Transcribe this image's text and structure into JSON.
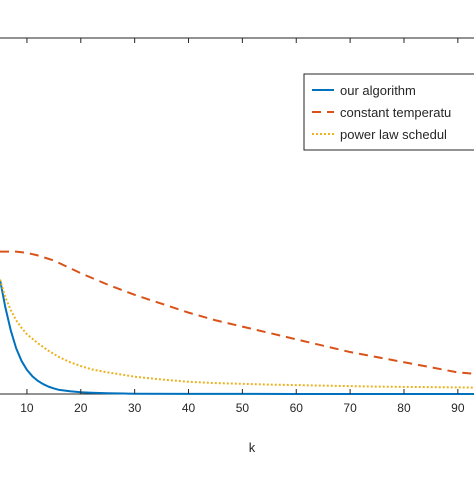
{
  "chart_data": {
    "type": "line",
    "xlabel": "k",
    "ylabel": "",
    "title": "",
    "xlim": [
      5,
      93
    ],
    "ylim": [
      0,
      1.4
    ],
    "x_ticks": [
      10,
      20,
      30,
      40,
      50,
      60,
      70,
      80,
      90
    ],
    "x_tick_labels": [
      "10",
      "20",
      "30",
      "40",
      "50",
      "60",
      "70",
      "80",
      "90"
    ],
    "grid": false,
    "legend_position": "top-right",
    "series": [
      {
        "name": "our algorithm",
        "color": "#0072bd",
        "line_style": "solid",
        "points": [
          [
            5,
            0.45
          ],
          [
            6,
            0.34
          ],
          [
            7,
            0.25
          ],
          [
            8,
            0.18
          ],
          [
            9,
            0.13
          ],
          [
            10,
            0.095
          ],
          [
            11,
            0.07
          ],
          [
            12,
            0.052
          ],
          [
            13,
            0.039
          ],
          [
            14,
            0.029
          ],
          [
            15,
            0.022
          ],
          [
            16,
            0.016
          ],
          [
            18,
            0.011
          ],
          [
            20,
            0.007
          ],
          [
            22,
            0.005
          ],
          [
            25,
            0.003
          ],
          [
            28,
            0.002
          ],
          [
            30,
            0.001
          ],
          [
            40,
            0.0005
          ],
          [
            50,
            0.0003
          ],
          [
            60,
            0.0002
          ],
          [
            70,
            0.0001
          ],
          [
            80,
            0.0001
          ],
          [
            93,
            0.0001
          ]
        ]
      },
      {
        "name": "constant temperatu",
        "color": "#d95319",
        "line_style": "dashed",
        "points": [
          [
            5,
            0.56
          ],
          [
            8,
            0.56
          ],
          [
            10,
            0.555
          ],
          [
            12,
            0.545
          ],
          [
            15,
            0.525
          ],
          [
            18,
            0.495
          ],
          [
            20,
            0.475
          ],
          [
            25,
            0.43
          ],
          [
            30,
            0.39
          ],
          [
            35,
            0.355
          ],
          [
            40,
            0.32
          ],
          [
            45,
            0.29
          ],
          [
            50,
            0.265
          ],
          [
            55,
            0.24
          ],
          [
            60,
            0.215
          ],
          [
            65,
            0.19
          ],
          [
            70,
            0.165
          ],
          [
            75,
            0.145
          ],
          [
            80,
            0.125
          ],
          [
            85,
            0.105
          ],
          [
            90,
            0.085
          ],
          [
            93,
            0.08
          ]
        ]
      },
      {
        "name": "power law schedul",
        "color": "#edb120",
        "line_style": "dotted",
        "points": [
          [
            5,
            0.45
          ],
          [
            6,
            0.38
          ],
          [
            7,
            0.33
          ],
          [
            8,
            0.29
          ],
          [
            9,
            0.26
          ],
          [
            10,
            0.235
          ],
          [
            12,
            0.2
          ],
          [
            14,
            0.17
          ],
          [
            16,
            0.145
          ],
          [
            18,
            0.125
          ],
          [
            20,
            0.11
          ],
          [
            22,
            0.097
          ],
          [
            25,
            0.085
          ],
          [
            28,
            0.075
          ],
          [
            30,
            0.068
          ],
          [
            35,
            0.057
          ],
          [
            40,
            0.048
          ],
          [
            45,
            0.043
          ],
          [
            50,
            0.04
          ],
          [
            55,
            0.037
          ],
          [
            60,
            0.035
          ],
          [
            65,
            0.033
          ],
          [
            70,
            0.031
          ],
          [
            75,
            0.029
          ],
          [
            80,
            0.028
          ],
          [
            85,
            0.027
          ],
          [
            90,
            0.026
          ],
          [
            93,
            0.025
          ]
        ]
      }
    ]
  }
}
